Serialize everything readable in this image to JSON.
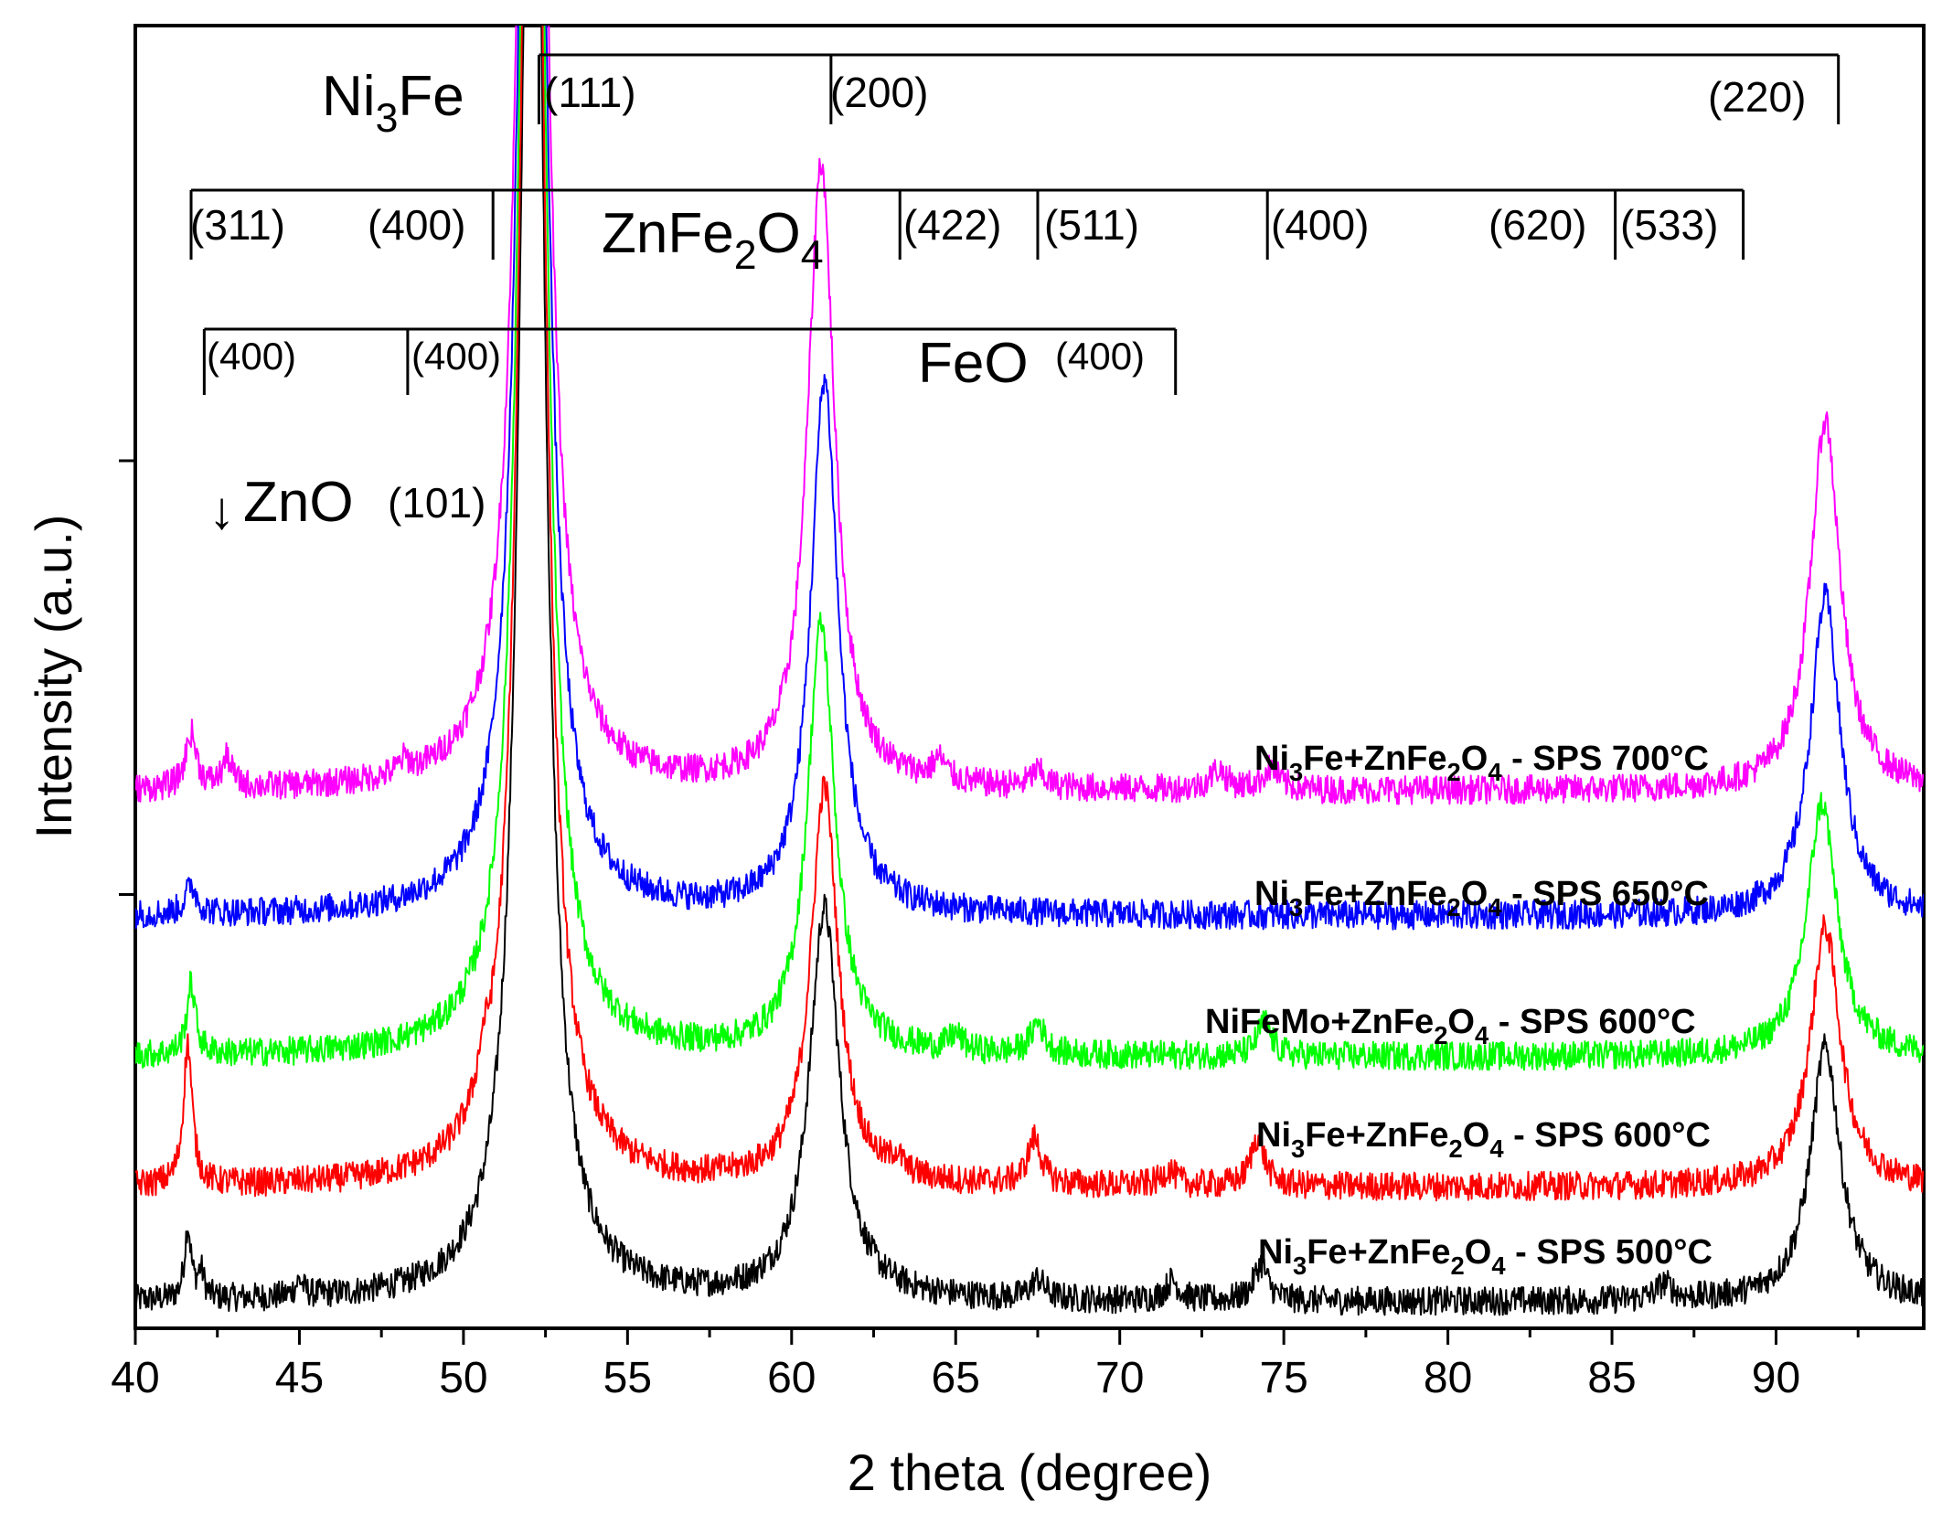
{
  "chart_data": {
    "type": "line",
    "title": "",
    "xlabel": "2 theta (degree)",
    "ylabel": "Intensity (a.u.)",
    "xlim": [
      40,
      94.5
    ],
    "ylim": [
      0,
      100
    ],
    "x_ticks": [
      40,
      45,
      50,
      55,
      60,
      65,
      70,
      75,
      80,
      85,
      90
    ],
    "x_tick_labels": [
      "40",
      "45",
      "50",
      "55",
      "60",
      "65",
      "70",
      "75",
      "80",
      "85",
      "90"
    ],
    "y_tick_values": [
      66.6,
      33.3
    ],
    "y_tick_labels": "none",
    "series": [
      {
        "name": "Ni3Fe+ZnFe2O4 - SPS 500°C",
        "label_main": "Ni",
        "label_sub1": "3",
        "label_mid": "Fe+ZnFe",
        "label_sub2": "2",
        "label_o": "O",
        "label_sub3": "4",
        "label_tail": " - SPS 500°C",
        "color": "#000000",
        "baseline": 2.0,
        "peaks": [
          {
            "x": 41.6,
            "h": 5.5,
            "w": 0.12
          },
          {
            "x": 42.0,
            "h": 2.0,
            "w": 0.12
          },
          {
            "x": 45.0,
            "h": 1.2,
            "w": 0.15
          },
          {
            "x": 52.1,
            "h": 140,
            "w": 0.42
          },
          {
            "x": 61.0,
            "h": 30,
            "w": 0.55
          },
          {
            "x": 67.5,
            "h": 1.5,
            "w": 0.25
          },
          {
            "x": 71.6,
            "h": 1.5,
            "w": 0.25
          },
          {
            "x": 74.3,
            "h": 2.8,
            "w": 0.25
          },
          {
            "x": 86.6,
            "h": 1.2,
            "w": 0.3
          },
          {
            "x": 91.5,
            "h": 19.5,
            "w": 0.55
          }
        ]
      },
      {
        "name": "Ni3Fe+ZnFe2O4 - SPS 600°C",
        "label_main": "Ni",
        "label_sub1": "3",
        "label_mid": "Fe+ZnFe",
        "label_sub2": "2",
        "label_o": "O",
        "label_sub3": "4",
        "label_tail": " - SPS 600°C",
        "color": "#ff0000",
        "baseline": 10.8,
        "peaks": [
          {
            "x": 41.6,
            "h": 10.8,
            "w": 0.16
          },
          {
            "x": 50.6,
            "h": 2.4,
            "w": 0.2
          },
          {
            "x": 52.1,
            "h": 140,
            "w": 0.42
          },
          {
            "x": 61.0,
            "h": 30.5,
            "w": 0.5
          },
          {
            "x": 63.2,
            "h": 1.2,
            "w": 0.2
          },
          {
            "x": 67.4,
            "h": 3.5,
            "w": 0.25
          },
          {
            "x": 71.5,
            "h": 1.2,
            "w": 0.25
          },
          {
            "x": 74.2,
            "h": 3.8,
            "w": 0.25
          },
          {
            "x": 91.5,
            "h": 20.0,
            "w": 0.55
          }
        ]
      },
      {
        "name": "NiFeMo+ZnFe2O4 - SPS 600°C",
        "label_main": "NiFeMo+ZnFe",
        "label_sub1": "",
        "label_mid": "",
        "label_sub2": "2",
        "label_o": "O",
        "label_sub3": "4",
        "label_tail": " - SPS 600°C",
        "color": "#00ff00",
        "baseline": 20.8,
        "peaks": [
          {
            "x": 41.7,
            "h": 5.4,
            "w": 0.16
          },
          {
            "x": 52.1,
            "h": 140,
            "w": 0.42
          },
          {
            "x": 60.9,
            "h": 33,
            "w": 0.5
          },
          {
            "x": 65.0,
            "h": 1.2,
            "w": 0.25
          },
          {
            "x": 67.5,
            "h": 2.4,
            "w": 0.25
          },
          {
            "x": 74.4,
            "h": 2.6,
            "w": 0.25
          },
          {
            "x": 91.4,
            "h": 19.5,
            "w": 0.55
          }
        ]
      },
      {
        "name": "Ni3Fe+ZnFe2O4 - SPS 650°C",
        "label_main": "Ni",
        "label_sub1": "3",
        "label_mid": "Fe+ZnFe",
        "label_sub2": "2",
        "label_o": "O",
        "label_sub3": "4",
        "label_tail": " - SPS 650°C",
        "color": "#0000ff",
        "baseline": 31.6,
        "peaks": [
          {
            "x": 41.7,
            "h": 2.2,
            "w": 0.2
          },
          {
            "x": 52.1,
            "h": 140,
            "w": 0.42
          },
          {
            "x": 61.0,
            "h": 41,
            "w": 0.5
          },
          {
            "x": 91.5,
            "h": 24.5,
            "w": 0.55
          }
        ]
      },
      {
        "name": "Ni3Fe+ZnFe2O4 - SPS 700°C",
        "label_main": "Ni",
        "label_sub1": "3",
        "label_mid": "Fe+ZnFe",
        "label_sub2": "2",
        "label_o": "O",
        "label_sub3": "4",
        "label_tail": " - SPS 700°C",
        "color": "#ff00ff",
        "baseline": 41.2,
        "peaks": [
          {
            "x": 41.7,
            "h": 4.2,
            "w": 0.2
          },
          {
            "x": 42.8,
            "h": 2.2,
            "w": 0.18
          },
          {
            "x": 48.2,
            "h": 1.0,
            "w": 0.2
          },
          {
            "x": 52.1,
            "h": 140,
            "w": 0.42
          },
          {
            "x": 60.9,
            "h": 48,
            "w": 0.5
          },
          {
            "x": 64.5,
            "h": 1.6,
            "w": 0.25
          },
          {
            "x": 67.5,
            "h": 1.2,
            "w": 0.25
          },
          {
            "x": 73.0,
            "h": 1.5,
            "w": 0.3
          },
          {
            "x": 74.6,
            "h": 1.6,
            "w": 0.3
          },
          {
            "x": 91.5,
            "h": 28.5,
            "w": 0.55
          }
        ]
      }
    ],
    "annotations": {
      "ni3fe": {
        "label_main": "Ni",
        "label_sub": "3",
        "label_tail": "Fe",
        "reflections": [
          {
            "x": 52.3,
            "hkl": "(111)"
          },
          {
            "x": 61.2,
            "hkl": "(200)"
          },
          {
            "x": 91.9,
            "hkl": "(220)"
          }
        ]
      },
      "znfe2o4": {
        "label_main": "ZnFe",
        "label_sub1": "2",
        "label_mid": "O",
        "label_sub2": "4",
        "reflections": [
          {
            "x": 41.7,
            "hkl": "(311)"
          },
          {
            "x": 50.9,
            "hkl": "(400)"
          },
          {
            "x": 63.3,
            "hkl": "(422)"
          },
          {
            "x": 67.5,
            "hkl": "(511)"
          },
          {
            "x": 74.5,
            "hkl": "(400)"
          },
          {
            "x": 85.1,
            "hkl": "(620)"
          },
          {
            "x": 89.0,
            "hkl": "(533)"
          }
        ]
      },
      "feo": {
        "label": "FeO",
        "reflections": [
          {
            "x": 42.1,
            "hkl": "(400)"
          },
          {
            "x": 48.3,
            "hkl": "(400)"
          },
          {
            "x": 71.7,
            "hkl": "(400)"
          }
        ]
      },
      "zno": {
        "label": "ZnO",
        "hkl": "(101)",
        "arrow": "↓"
      }
    }
  }
}
